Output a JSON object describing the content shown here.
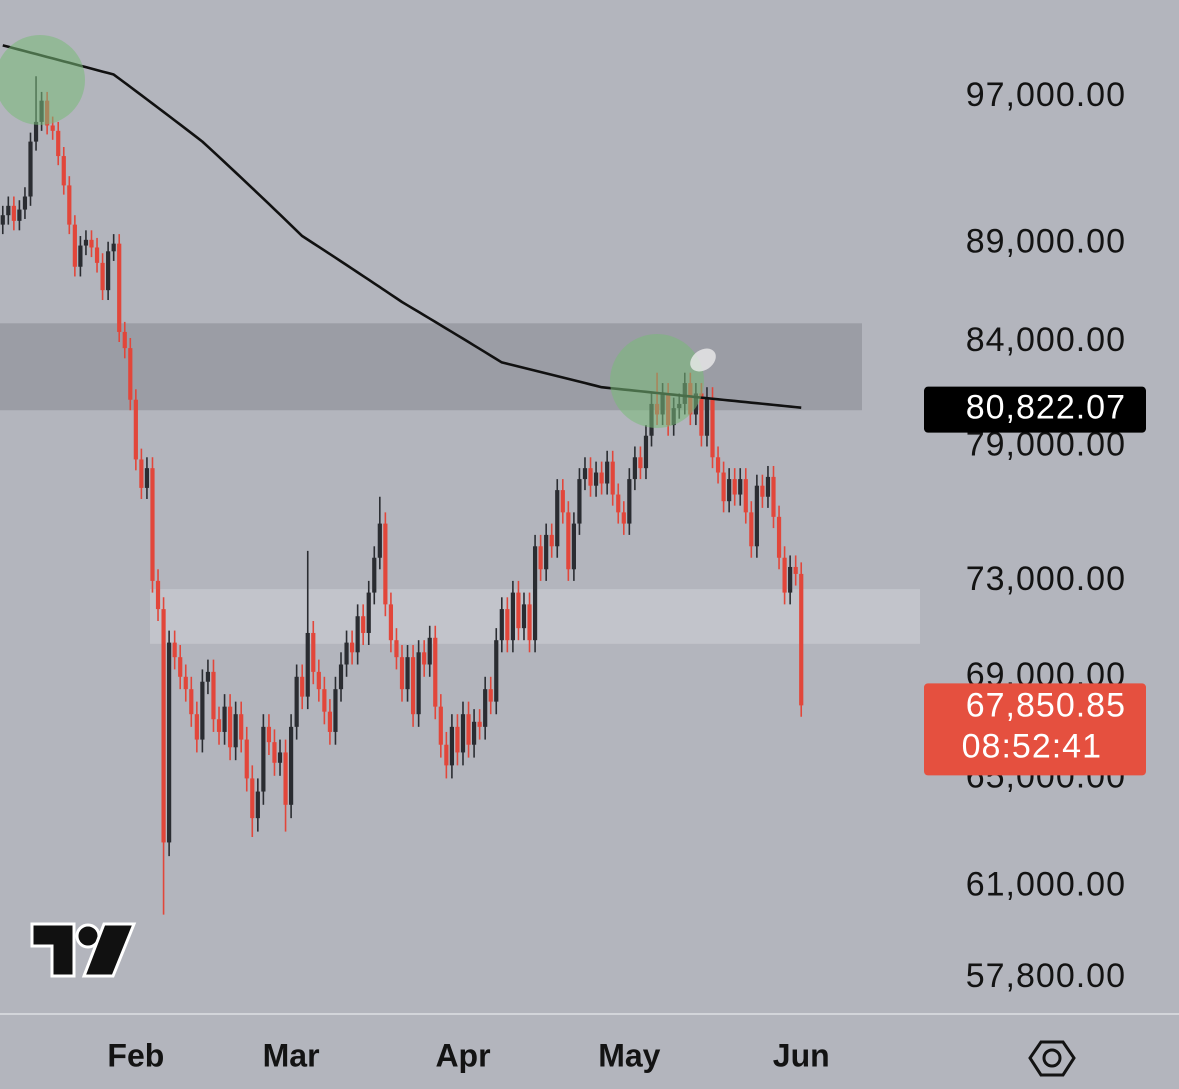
{
  "chart_data": {
    "type": "candlestick",
    "log_scale": true,
    "ylim": [
      56630,
      102700
    ],
    "yticks": [
      {
        "value": 97000,
        "label": "97,000.00"
      },
      {
        "value": 89000,
        "label": "89,000.00"
      },
      {
        "value": 84000,
        "label": "84,000.00"
      },
      {
        "value": 79000,
        "label": "79,000.00"
      },
      {
        "value": 73000,
        "label": "73,000.00"
      },
      {
        "value": 69000,
        "label": "69,000.00"
      },
      {
        "value": 65000,
        "label": "65,000.00"
      },
      {
        "value": 61000,
        "label": "61,000.00"
      },
      {
        "value": 57800,
        "label": "57,800.00"
      }
    ],
    "categories": [
      null,
      null,
      null,
      null,
      null,
      null,
      null,
      null,
      null,
      null,
      null,
      null,
      null,
      null,
      null,
      null,
      null,
      null,
      null,
      null,
      null,
      null,
      null,
      null,
      "Feb",
      null,
      null,
      null,
      null,
      null,
      null,
      null,
      null,
      null,
      null,
      null,
      null,
      null,
      null,
      null,
      null,
      null,
      null,
      null,
      null,
      null,
      null,
      null,
      null,
      null,
      null,
      null,
      "Mar",
      null,
      null,
      null,
      null,
      null,
      null,
      null,
      null,
      null,
      null,
      null,
      null,
      null,
      null,
      null,
      null,
      null,
      null,
      null,
      null,
      null,
      null,
      null,
      null,
      null,
      null,
      null,
      null,
      null,
      null,
      "Apr",
      null,
      null,
      null,
      null,
      null,
      null,
      null,
      null,
      null,
      null,
      null,
      null,
      null,
      null,
      null,
      null,
      null,
      null,
      null,
      null,
      null,
      null,
      null,
      null,
      null,
      null,
      null,
      null,
      null,
      "May",
      null,
      null,
      null,
      null,
      null,
      null,
      null,
      null,
      null,
      null,
      null,
      null,
      null,
      null,
      null,
      null,
      null,
      null,
      null,
      null,
      null,
      null,
      null,
      null,
      null,
      null,
      null,
      null,
      null,
      null,
      "Jun"
    ],
    "open": [
      90000,
      90500,
      91000,
      90200,
      90800,
      91500,
      94500,
      95600,
      96800,
      95400,
      95100,
      93700,
      92100,
      90000,
      87800,
      88900,
      89200,
      88800,
      88000,
      86600,
      88600,
      89000,
      84500,
      83700,
      81200,
      78400,
      77100,
      78000,
      73000,
      71800,
      62600,
      70400,
      69800,
      69000,
      68500,
      67500,
      66500,
      68800,
      69200,
      67300,
      66800,
      67800,
      66200,
      67500,
      66500,
      65000,
      63500,
      64500,
      67000,
      66400,
      65600,
      66000,
      64000,
      67000,
      69000,
      68200,
      70800,
      69200,
      68500,
      67600,
      66800,
      68500,
      69500,
      70400,
      70000,
      71500,
      70800,
      72500,
      74000,
      75500,
      72000,
      70500,
      69800,
      68500,
      69800,
      67500,
      70000,
      69500,
      70600,
      67800,
      66300,
      65500,
      67000,
      66000,
      67500,
      66300,
      67200,
      67000,
      68500,
      68000,
      70500,
      71800,
      70500,
      72500,
      71000,
      72000,
      70500,
      74500,
      73500,
      75000,
      74500,
      77000,
      76000,
      73500,
      75500,
      77500,
      78000,
      77200,
      77800,
      77300,
      78300,
      76800,
      76000,
      75500,
      77500,
      78500,
      78000,
      79500,
      81000,
      80500,
      81500,
      80000,
      80800,
      81000,
      82000,
      80500,
      81500,
      79500,
      81300,
      78500,
      77800,
      76500,
      77500,
      76800,
      77500,
      76000,
      74500,
      77200,
      76700,
      77600,
      75800,
      74000,
      72500,
      73600,
      73300
    ],
    "high": [
      91000,
      91500,
      91500,
      91300,
      92000,
      95000,
      98200,
      97300,
      97300,
      95900,
      95600,
      94200,
      92600,
      90500,
      89400,
      89700,
      89700,
      89300,
      88500,
      89100,
      89500,
      89500,
      85000,
      84200,
      81700,
      78900,
      78500,
      78500,
      73500,
      72300,
      70900,
      70900,
      70300,
      69500,
      69000,
      68000,
      69300,
      69700,
      69700,
      67800,
      68300,
      68300,
      68000,
      68000,
      67000,
      65500,
      65000,
      67500,
      67500,
      66900,
      66500,
      66500,
      67500,
      69500,
      69500,
      74300,
      71300,
      69700,
      69000,
      68100,
      69000,
      70000,
      70900,
      70900,
      72000,
      72000,
      73000,
      74500,
      76700,
      76000,
      72500,
      71000,
      70300,
      70300,
      70300,
      70500,
      70500,
      71100,
      71100,
      68300,
      66800,
      67500,
      67500,
      68000,
      68000,
      67700,
      67700,
      69000,
      69000,
      71000,
      72300,
      72300,
      73000,
      73000,
      72500,
      72500,
      75000,
      75000,
      75500,
      75500,
      77500,
      77500,
      76500,
      76000,
      78000,
      78500,
      78500,
      78300,
      78300,
      78800,
      78800,
      77300,
      76500,
      78000,
      79000,
      79000,
      80000,
      81500,
      82500,
      82000,
      82000,
      81300,
      81500,
      82500,
      82500,
      82000,
      82000,
      81800,
      81800,
      79000,
      78300,
      78000,
      78000,
      78000,
      78000,
      76500,
      77700,
      77700,
      78100,
      78100,
      76300,
      74500,
      74100,
      74100,
      73800
    ],
    "low": [
      89500,
      90000,
      89700,
      89700,
      90300,
      91000,
      94000,
      95100,
      94900,
      94600,
      93200,
      91600,
      89500,
      87300,
      87300,
      88400,
      88300,
      87500,
      86100,
      86100,
      88100,
      84000,
      83200,
      80700,
      77900,
      76600,
      76600,
      72500,
      71300,
      60000,
      62100,
      69300,
      68500,
      68000,
      67000,
      66000,
      66000,
      68300,
      66800,
      66300,
      66300,
      65700,
      65700,
      66000,
      64500,
      62800,
      63000,
      64000,
      65900,
      65100,
      65100,
      63000,
      63500,
      66500,
      67700,
      67700,
      68700,
      68000,
      67100,
      66300,
      66300,
      68000,
      69000,
      69500,
      69500,
      70300,
      70300,
      72000,
      73500,
      71500,
      70000,
      69300,
      68000,
      68000,
      67000,
      67000,
      69000,
      69000,
      67300,
      65800,
      65000,
      65000,
      65500,
      65500,
      65800,
      65800,
      66500,
      66500,
      67500,
      67500,
      70000,
      70000,
      70000,
      70500,
      70500,
      70000,
      70000,
      73000,
      73000,
      74000,
      74000,
      75500,
      73000,
      73000,
      75000,
      77000,
      76700,
      76700,
      76800,
      76800,
      76300,
      75500,
      75000,
      75000,
      77000,
      77500,
      77500,
      79000,
      80000,
      80000,
      79500,
      79500,
      80300,
      80500,
      80000,
      80000,
      79000,
      79000,
      78000,
      77300,
      76000,
      76000,
      76300,
      76300,
      75500,
      74000,
      74000,
      76200,
      76200,
      75300,
      73500,
      72000,
      72000,
      72800,
      67400
    ],
    "close": [
      90500,
      91000,
      90200,
      90800,
      91500,
      94500,
      95600,
      96800,
      95400,
      95100,
      93700,
      92100,
      90000,
      87800,
      88900,
      89200,
      88800,
      88000,
      86600,
      88600,
      89000,
      84500,
      83700,
      81200,
      78400,
      77100,
      78000,
      73000,
      71800,
      62600,
      70400,
      69800,
      69000,
      68500,
      67500,
      66500,
      68800,
      69200,
      67300,
      66800,
      67800,
      66200,
      67500,
      66500,
      65000,
      63500,
      64500,
      67000,
      66400,
      65600,
      66000,
      64000,
      67000,
      69000,
      68200,
      70800,
      69200,
      68500,
      67600,
      66800,
      68500,
      69500,
      70400,
      70000,
      71500,
      70800,
      72500,
      74000,
      75500,
      72000,
      70500,
      69800,
      68500,
      69800,
      67500,
      70000,
      69500,
      70600,
      67800,
      66300,
      65500,
      67000,
      66000,
      67500,
      66300,
      67200,
      67000,
      68500,
      68000,
      70500,
      71800,
      70500,
      72500,
      71000,
      72000,
      70500,
      74500,
      73500,
      75000,
      74500,
      77000,
      76000,
      73500,
      75500,
      77500,
      78000,
      77200,
      77800,
      77300,
      78300,
      76800,
      76000,
      75500,
      77500,
      78500,
      78000,
      79500,
      81000,
      80500,
      81500,
      80000,
      80800,
      81000,
      82000,
      80500,
      81500,
      79500,
      81300,
      78500,
      77800,
      76500,
      77500,
      76800,
      77500,
      76000,
      74500,
      77200,
      76700,
      77600,
      75800,
      74000,
      72500,
      73600,
      73300,
      67850.85
    ],
    "up_color": "#2a2c31",
    "down_color": "#e2463a",
    "ma": {
      "color": "#111111",
      "values": [
        100000,
        99915,
        99830,
        99745,
        99660,
        99575,
        99490,
        99405,
        99320,
        99235,
        99150,
        99065,
        98980,
        98895,
        98810,
        98725,
        98640,
        98555,
        98470,
        98385,
        98300,
        98062,
        97825,
        97588,
        97350,
        97112,
        96875,
        96638,
        96400,
        96162,
        95925,
        95688,
        95450,
        95212,
        94975,
        94738,
        94500,
        94217,
        93933,
        93650,
        93367,
        93083,
        92800,
        92517,
        92233,
        91950,
        91667,
        91383,
        91100,
        90817,
        90533,
        90250,
        89967,
        89683,
        89400,
        89211,
        89022,
        88833,
        88644,
        88456,
        88267,
        88078,
        87889,
        87700,
        87511,
        87322,
        87133,
        86944,
        86756,
        86567,
        86378,
        86189,
        86000,
        85833,
        85667,
        85500,
        85333,
        85167,
        85000,
        84833,
        84667,
        84500,
        84333,
        84167,
        84000,
        83833,
        83667,
        83500,
        83333,
        83167,
        83000,
        82933,
        82867,
        82800,
        82733,
        82667,
        82600,
        82533,
        82467,
        82400,
        82333,
        82267,
        82200,
        82133,
        82067,
        82000,
        81933,
        81867,
        81800,
        81772,
        81744,
        81717,
        81689,
        81661,
        81633,
        81606,
        81578,
        81550,
        81522,
        81494,
        81467,
        81439,
        81411,
        81383,
        81356,
        81328,
        81300,
        81273,
        81247,
        81220,
        81194,
        81167,
        81141,
        81114,
        81088,
        81061,
        81035,
        81008,
        80982,
        80955,
        80929,
        80902,
        80876,
        80849,
        80822.07
      ],
      "last_label": "80,822.07"
    },
    "price_label": "67,850.85",
    "countdown": "08:52:41",
    "zones": [
      {
        "ylim": [
          80700,
          84930
        ],
        "color": "#9b9da5"
      },
      {
        "ylim": [
          70350,
          72650
        ],
        "color": "#c2c4cb"
      }
    ]
  }
}
